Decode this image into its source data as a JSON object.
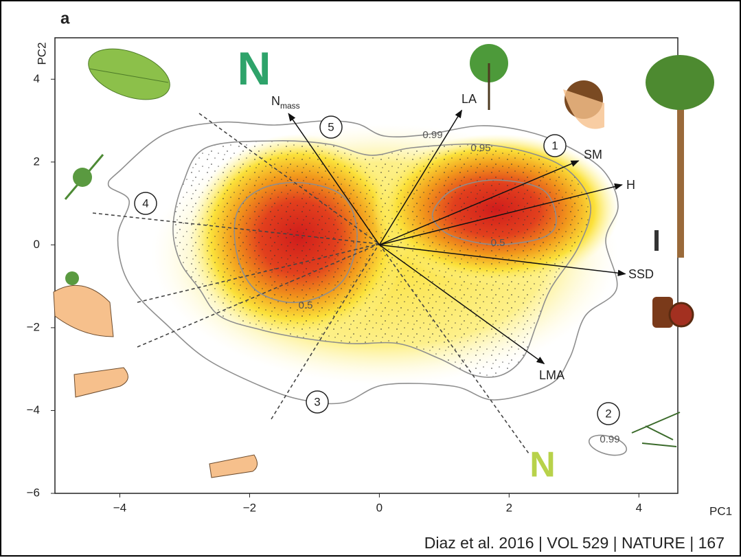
{
  "panel_label": "a",
  "chart_data": {
    "type": "biplot",
    "x_label": "PC1",
    "y_label": "PC2",
    "xlim": [
      -5,
      4.6
    ],
    "ylim": [
      -6,
      5
    ],
    "xticks": [
      {
        "value": -4,
        "label": "−4"
      },
      {
        "value": -2,
        "label": "−2"
      },
      0,
      2,
      4
    ],
    "yticks": [
      {
        "value": -6,
        "label": "−6"
      },
      {
        "value": -4,
        "label": "−4"
      },
      {
        "value": -2,
        "label": "−2"
      },
      0,
      2,
      4
    ],
    "loadings": [
      {
        "name": "N",
        "subscript": "mass",
        "x": -1.4,
        "y": 3.17
      },
      {
        "name": "LA",
        "x": 1.27,
        "y": 3.25
      },
      {
        "name": "SM",
        "x": 3.07,
        "y": 2.03
      },
      {
        "name": "H",
        "x": 3.74,
        "y": 1.45
      },
      {
        "name": "SSD",
        "x": 3.79,
        "y": -0.7
      },
      {
        "name": "LMA",
        "x": 2.54,
        "y": -2.87
      }
    ],
    "group_labels": [
      "1",
      "2",
      "3",
      "4",
      "5"
    ],
    "contour_labels": [
      "0.99",
      "0.95",
      "0.5",
      "0.5",
      "0.99"
    ],
    "icons": [
      "N",
      "N"
    ]
  },
  "citation": "Diaz et al. 2016 | VOL 529 | NATURE | 167"
}
